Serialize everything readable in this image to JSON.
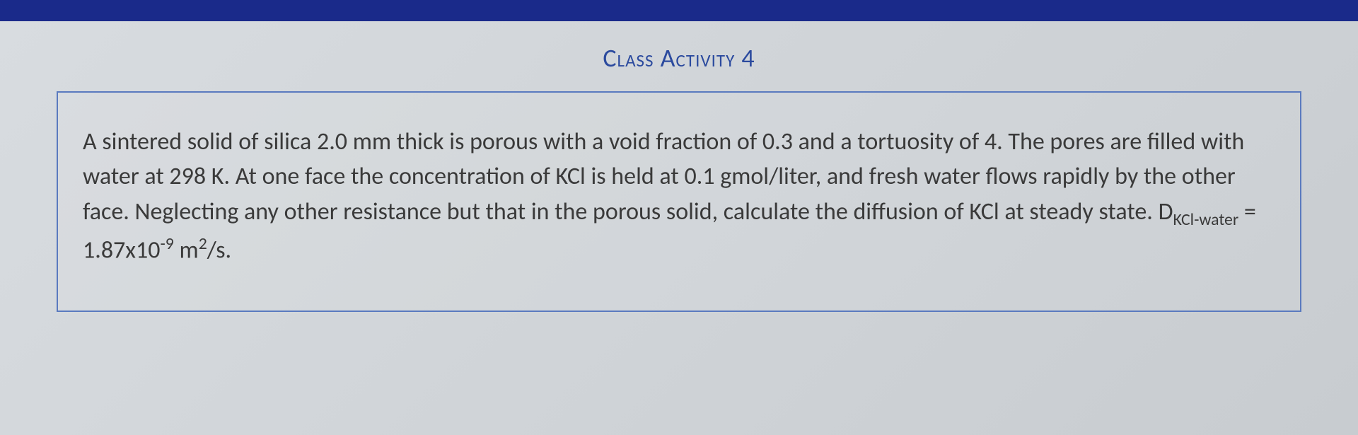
{
  "header": {
    "banner_color": "#1a2a8a"
  },
  "document": {
    "title": "Class Activity 4",
    "title_color": "#2b4a9e",
    "title_fontsize": 36,
    "box_border_color": "#5a7abf",
    "background_color": "#d8dce0",
    "problem": {
      "text_color": "#3a3a3a",
      "fontsize": 34,
      "line1": "A sintered solid of silica 2.0 mm thick is porous with a void fraction of 0.3 and a tortuosity of 4.",
      "line2": "The pores are filled with water at 298 K. At one face the concentration of KCl is held at 0.1",
      "line3": "gmol/liter, and fresh water flows rapidly by the other face. Neglecting any other resistance but",
      "line4_part1": "that in the porous solid, calculate the diffusion of KCl at steady state. D",
      "diffusion_subscript": "KCl-water",
      "equals": " = 1.87x10",
      "exponent": "-9",
      "unit_part1": " m",
      "unit_exponent": "2",
      "unit_part2": "/s."
    }
  }
}
